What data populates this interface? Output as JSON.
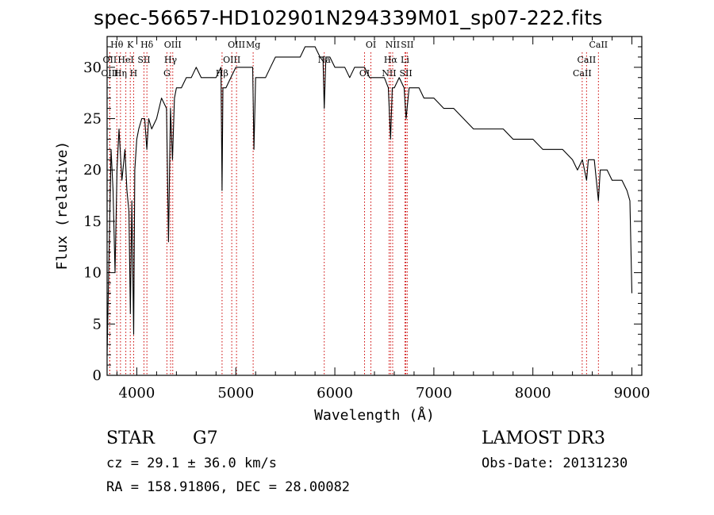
{
  "chart_data": {
    "type": "line",
    "title": "spec-56657-HD102901N294339M01_sp07-222.fits",
    "xlabel": "Wavelength (Å)",
    "ylabel": "Flux (relative)",
    "xlim": [
      3700,
      9100
    ],
    "ylim": [
      0,
      33
    ],
    "x_ticks": [
      4000,
      5000,
      6000,
      7000,
      8000,
      9000
    ],
    "y_ticks": [
      0,
      5,
      10,
      15,
      20,
      25,
      30
    ],
    "series": [
      {
        "name": "flux",
        "x": [
          3700,
          3720,
          3740,
          3760,
          3780,
          3800,
          3820,
          3850,
          3880,
          3900,
          3920,
          3935,
          3950,
          3968,
          3980,
          4000,
          4020,
          4050,
          4080,
          4101,
          4120,
          4150,
          4200,
          4250,
          4300,
          4320,
          4340,
          4360,
          4380,
          4400,
          4450,
          4500,
          4550,
          4600,
          4650,
          4700,
          4750,
          4800,
          4850,
          4861,
          4870,
          4900,
          4950,
          5000,
          5050,
          5100,
          5150,
          5170,
          5183,
          5200,
          5250,
          5300,
          5350,
          5400,
          5450,
          5500,
          5550,
          5600,
          5650,
          5700,
          5750,
          5800,
          5850,
          5880,
          5893,
          5910,
          5950,
          6000,
          6050,
          6100,
          6150,
          6200,
          6250,
          6300,
          6350,
          6400,
          6450,
          6500,
          6540,
          6563,
          6580,
          6600,
          6650,
          6700,
          6720,
          6750,
          6800,
          6850,
          6900,
          6950,
          7000,
          7100,
          7200,
          7300,
          7400,
          7500,
          7600,
          7700,
          7800,
          7900,
          8000,
          8100,
          8200,
          8300,
          8400,
          8450,
          8500,
          8542,
          8560,
          8600,
          8620,
          8662,
          8680,
          8700,
          8750,
          8800,
          8850,
          8900,
          8950,
          8980,
          9000
        ],
        "y": [
          2,
          12,
          22,
          18,
          10,
          20,
          24,
          19,
          22,
          18,
          16,
          6,
          17,
          4,
          20,
          23,
          24,
          25,
          25,
          22,
          25,
          24,
          25,
          27,
          26,
          13,
          26,
          21,
          27,
          28,
          28,
          29,
          29,
          30,
          29,
          29,
          29,
          29,
          30,
          18,
          28,
          28,
          29,
          30,
          30,
          30,
          30,
          30,
          22,
          29,
          29,
          29,
          30,
          31,
          31,
          31,
          31,
          31,
          31,
          32,
          32,
          32,
          31,
          31,
          26,
          31,
          31,
          30,
          30,
          30,
          29,
          30,
          30,
          30,
          29,
          29,
          29,
          29,
          28,
          23,
          28,
          28,
          29,
          28,
          25,
          28,
          28,
          28,
          27,
          27,
          27,
          26,
          26,
          25,
          24,
          24,
          24,
          24,
          23,
          23,
          23,
          22,
          22,
          22,
          21,
          20,
          21,
          19,
          21,
          21,
          21,
          17,
          20,
          20,
          20,
          19,
          19,
          19,
          18,
          17,
          8
        ]
      }
    ],
    "line_markers": [
      {
        "name": "Hθ",
        "wave": 3798
      },
      {
        "name": "OII",
        "wave": 3727
      },
      {
        "name": "OIII",
        "wave": 3727
      },
      {
        "name": "K",
        "wave": 3934
      },
      {
        "name": "HeI",
        "wave": 3889
      },
      {
        "name": "Hη",
        "wave": 3835
      },
      {
        "name": "Hδ",
        "wave": 4102
      },
      {
        "name": "SII",
        "wave": 4072
      },
      {
        "name": "H",
        "wave": 3968
      },
      {
        "name": "OIII",
        "wave": 4363
      },
      {
        "name": "Hγ",
        "wave": 4341
      },
      {
        "name": "G",
        "wave": 4304
      },
      {
        "name": "OIII",
        "wave": 5007
      },
      {
        "name": "OIII",
        "wave": 4959
      },
      {
        "name": "Hβ",
        "wave": 4861
      },
      {
        "name": "Mg",
        "wave": 5175
      },
      {
        "name": "Na",
        "wave": 5893
      },
      {
        "name": "OI",
        "wave": 6300
      },
      {
        "name": "OI",
        "wave": 6364
      },
      {
        "name": "Hα",
        "wave": 6563
      },
      {
        "name": "SII",
        "wave": 6717
      },
      {
        "name": "NII",
        "wave": 6584
      },
      {
        "name": "Li",
        "wave": 6708
      },
      {
        "name": "NII",
        "wave": 6548
      },
      {
        "name": "SII",
        "wave": 6731
      },
      {
        "name": "CaII",
        "wave": 8542
      },
      {
        "name": "CaII",
        "wave": 8498
      },
      {
        "name": "CaII",
        "wave": 8662
      }
    ]
  },
  "info": {
    "object_class": "STAR",
    "subclass": "G7",
    "survey": "LAMOST DR3",
    "cz": "cz = 29.1 ± 36.0 km/s",
    "obs_date": "Obs-Date: 20131230",
    "coords": "RA = 158.91806, DEC =  28.00082"
  },
  "colors": {
    "line": "#000000",
    "marker": "#cc0000",
    "axes": "#000000",
    "background": "#ffffff"
  }
}
